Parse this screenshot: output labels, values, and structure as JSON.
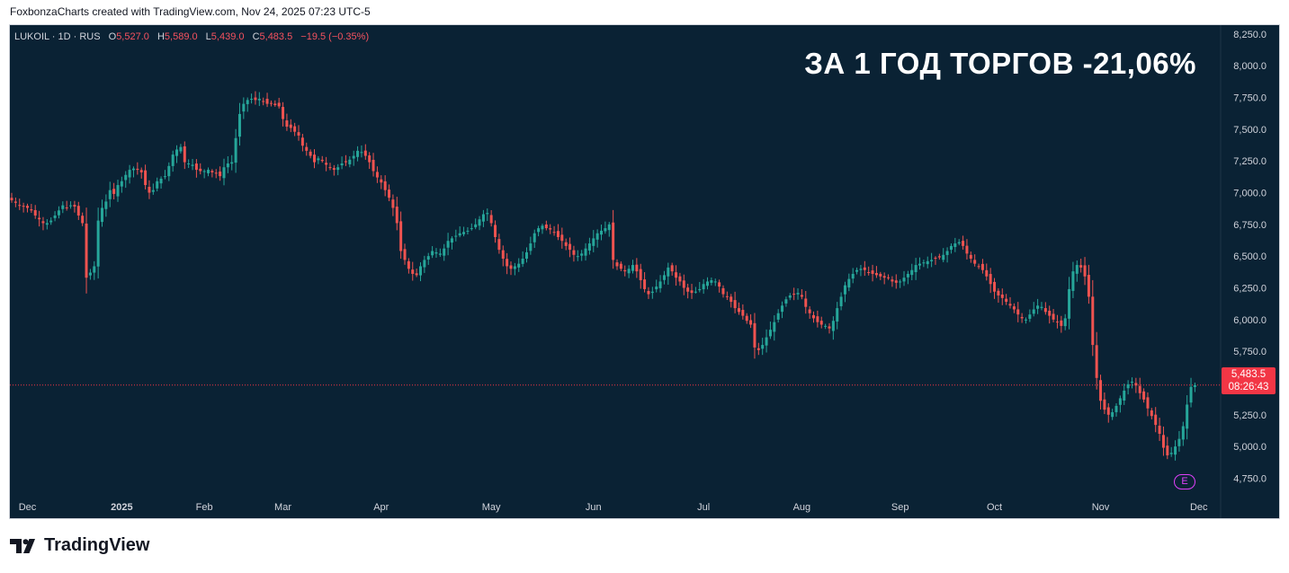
{
  "header": {
    "credit": "FoxbonzaCharts created with TradingView.com, Nov 24, 2025 07:23 UTC-5"
  },
  "legend": {
    "symbol": "LUKOIL · 1D · RUS",
    "open_label": "O",
    "open": "5,527.0",
    "high_label": "H",
    "high": "5,589.0",
    "low_label": "L",
    "low": "5,439.0",
    "close_label": "C",
    "close": "5,483.5",
    "change": "−19.5 (−0.35%)"
  },
  "headline": "ЗА 1 ГОД ТОРГОВ -21,06%",
  "price_tag": {
    "price": "5,483.5",
    "countdown": "08:26:43"
  },
  "earnings_badge": "E",
  "brand": "TradingView",
  "colors": {
    "background": "#0a2234",
    "up": "#26a69a",
    "down": "#ef5350",
    "axis_text": "#d1d4dc",
    "price_tag": "#f23645"
  },
  "chart_data": {
    "type": "candlestick",
    "last_price": 5483.5,
    "ylim": [
      4640,
      8320
    ],
    "y_ticks": [
      "8,250.0",
      "8,000.0",
      "7,750.0",
      "7,500.0",
      "7,250.0",
      "7,000.0",
      "6,750.0",
      "6,500.0",
      "6,250.0",
      "6,000.0",
      "5,750.0",
      "5,250.0",
      "5,000.0",
      "4,750.0"
    ],
    "y_tick_values": [
      8250,
      8000,
      7750,
      7500,
      7250,
      7000,
      6750,
      6500,
      6250,
      6000,
      5750,
      5250,
      5000,
      4750
    ],
    "x_ticks": [
      "Dec",
      "2025",
      "Feb",
      "Mar",
      "Apr",
      "May",
      "Jun",
      "Jul",
      "Aug",
      "Sep",
      "Oct",
      "Nov",
      "Dec"
    ],
    "x_tick_index": [
      4,
      28,
      49,
      69,
      94,
      122,
      148,
      176,
      201,
      226,
      250,
      277,
      302
    ],
    "series_close": [
      6940,
      6920,
      6900,
      6890,
      6880,
      6860,
      6820,
      6790,
      6760,
      6760,
      6780,
      6820,
      6860,
      6900,
      6880,
      6900,
      6890,
      6820,
      6760,
      6330,
      6370,
      6420,
      6780,
      6880,
      6930,
      7020,
      6990,
      7060,
      7090,
      7140,
      7180,
      7190,
      7180,
      7160,
      7060,
      7000,
      7020,
      7090,
      7110,
      7130,
      7210,
      7300,
      7340,
      7360,
      7240,
      7230,
      7220,
      7180,
      7170,
      7170,
      7180,
      7160,
      7150,
      7130,
      7200,
      7230,
      7240,
      7430,
      7620,
      7700,
      7730,
      7740,
      7730,
      7740,
      7720,
      7700,
      7700,
      7690,
      7680,
      7580,
      7520,
      7510,
      7480,
      7450,
      7370,
      7330,
      7290,
      7240,
      7270,
      7250,
      7220,
      7200,
      7180,
      7200,
      7230,
      7240,
      7260,
      7290,
      7330,
      7320,
      7290,
      7240,
      7170,
      7120,
      7080,
      7020,
      6960,
      6880,
      6760,
      6540,
      6470,
      6400,
      6360,
      6350,
      6420,
      6470,
      6500,
      6540,
      6530,
      6520,
      6560,
      6620,
      6640,
      6660,
      6680,
      6690,
      6700,
      6720,
      6750,
      6790,
      6830,
      6840,
      6760,
      6650,
      6550,
      6480,
      6420,
      6400,
      6420,
      6440,
      6480,
      6530,
      6600,
      6680,
      6720,
      6740,
      6720,
      6710,
      6690,
      6650,
      6620,
      6580,
      6550,
      6510,
      6500,
      6520,
      6560,
      6600,
      6640,
      6680,
      6700,
      6720,
      6750,
      6470,
      6420,
      6400,
      6380,
      6400,
      6430,
      6380,
      6310,
      6240,
      6200,
      6220,
      6260,
      6300,
      6350,
      6410,
      6380,
      6330,
      6300,
      6250,
      6220,
      6210,
      6220,
      6240,
      6280,
      6300,
      6310,
      6300,
      6260,
      6200,
      6180,
      6140,
      6090,
      6060,
      6030,
      5990,
      5960,
      5780,
      5760,
      5800,
      5860,
      5920,
      5980,
      6050,
      6110,
      6160,
      6190,
      6200,
      6210,
      6180,
      6100,
      6050,
      6010,
      5980,
      5960,
      5950,
      5930,
      5990,
      6090,
      6180,
      6270,
      6320,
      6360,
      6390,
      6400,
      6390,
      6370,
      6360,
      6350,
      6340,
      6330,
      6330,
      6300,
      6290,
      6300,
      6330,
      6360,
      6390,
      6430,
      6440,
      6450,
      6460,
      6470,
      6480,
      6490,
      6510,
      6540,
      6580,
      6600,
      6610,
      6580,
      6520,
      6480,
      6440,
      6420,
      6390,
      6340,
      6280,
      6220,
      6190,
      6170,
      6140,
      6110,
      6080,
      6040,
      6010,
      6000,
      6040,
      6080,
      6110,
      6100,
      6060,
      6030,
      6000,
      5980,
      5950,
      6010,
      6240,
      6380,
      6430,
      6410,
      6340,
      6180,
      5800,
      5540,
      5360,
      5290,
      5250,
      5270,
      5320,
      5380,
      5440,
      5490,
      5510,
      5480,
      5420,
      5370,
      5300,
      5240,
      5170,
      5100,
      4990,
      4930,
      4950,
      5000,
      5060,
      5160,
      5330,
      5470,
      5483.5
    ],
    "start_date": "2024-11-25",
    "end_date": "2025-11-24"
  }
}
